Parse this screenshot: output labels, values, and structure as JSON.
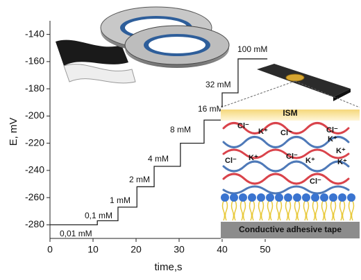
{
  "chart_data": {
    "type": "line",
    "x_label": "time,s",
    "y_label": "E, mV",
    "x": [
      0,
      11,
      11,
      15.8,
      15.8,
      20.2,
      20.2,
      24.2,
      24.2,
      30.3,
      30.3,
      35.8,
      35.8,
      40,
      40,
      43.7,
      43.7,
      50.5
    ],
    "series": [
      {
        "name": "E",
        "color": "#222222",
        "values": [
          -280,
          -280,
          -277,
          -277,
          -267,
          -267,
          -252,
          -252,
          -237,
          -237,
          -220,
          -220,
          -203,
          -203,
          -183,
          -183,
          -158,
          -158
        ]
      }
    ],
    "annotations": [
      "0,01 mM",
      "0,1 mM",
      "1 mM",
      "2 mM",
      "4 mM",
      "8 mM",
      "16 mM",
      "32 mM",
      "100 mM"
    ],
    "xlim": [
      0,
      55
    ],
    "xticks": [
      0,
      10,
      20,
      30,
      40,
      50
    ],
    "ylim": [
      -290,
      -130
    ],
    "yticks": [
      -280,
      -260,
      -240,
      -220,
      -200,
      -180,
      -160,
      -140
    ]
  },
  "inset": {
    "top_label": "ISM",
    "bottom_label": "Conductive adhesive tape",
    "ions": [
      "Cl⁻",
      "K⁺",
      "Cl⁻",
      "Cl⁻",
      "K⁺",
      "Cl⁻",
      "K⁺",
      "Cl⁻",
      "K⁺",
      "K⁺",
      "K⁺",
      "Cl⁻"
    ]
  }
}
